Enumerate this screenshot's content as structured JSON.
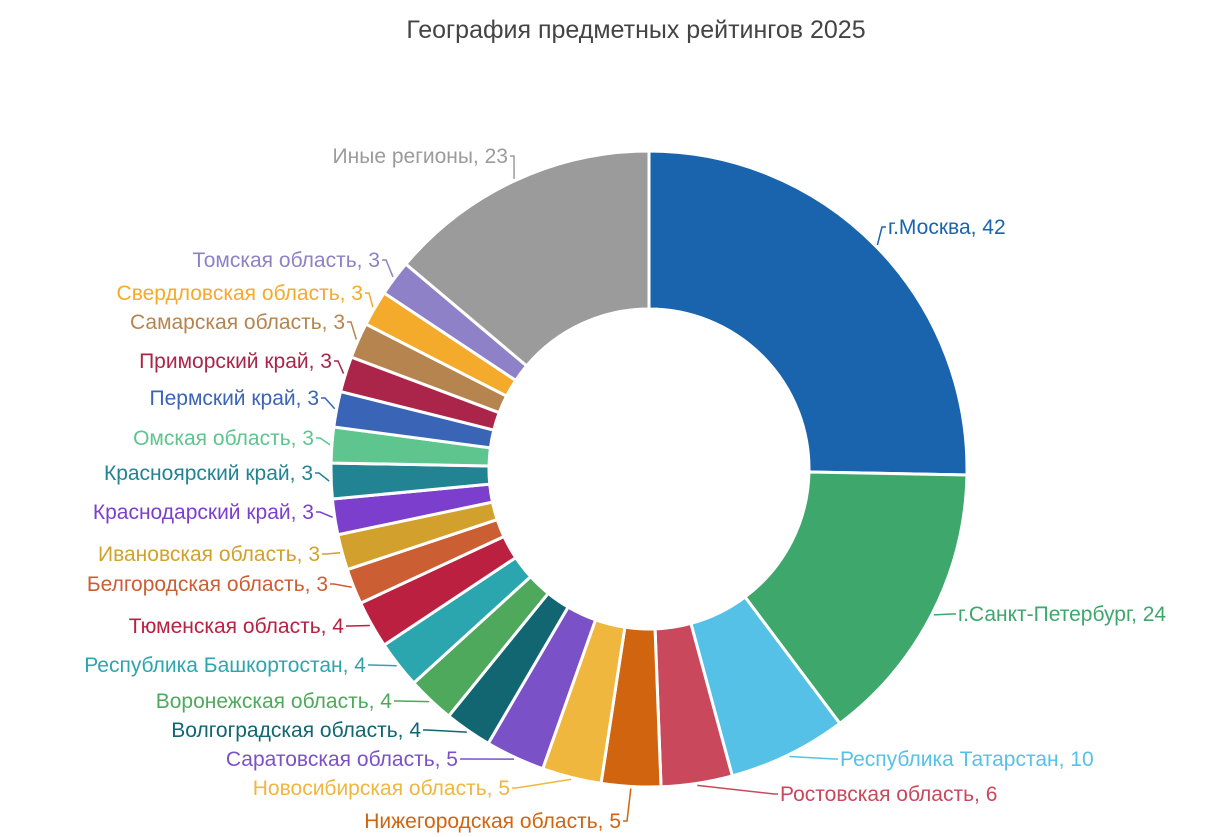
{
  "chart_data": {
    "type": "pie",
    "donut": true,
    "title": "География предметных рейтингов 2025",
    "slices": [
      {
        "label": "г.Москва, 42",
        "value": 42,
        "color": "#1a64ad"
      },
      {
        "label": "г.Санкт-Петербург, 24",
        "value": 24,
        "color": "#3ea76b"
      },
      {
        "label": "Республика Татарстан, 10",
        "value": 10,
        "color": "#56c1e6"
      },
      {
        "label": "Ростовская область, 6",
        "value": 6,
        "color": "#c9485b"
      },
      {
        "label": "Нижегородская область, 5",
        "value": 5,
        "color": "#d1640f"
      },
      {
        "label": "Новосибирская область, 5",
        "value": 5,
        "color": "#efb73e"
      },
      {
        "label": "Саратовская область, 5",
        "value": 5,
        "color": "#7b51c7"
      },
      {
        "label": "Волгоградская область, 4",
        "value": 4,
        "color": "#116671"
      },
      {
        "label": "Воронежская область, 4",
        "value": 4,
        "color": "#4fa95c"
      },
      {
        "label": "Республика Башкортостан, 4",
        "value": 4,
        "color": "#2ca6ae"
      },
      {
        "label": "Тюменская область, 4",
        "value": 4,
        "color": "#bb2040"
      },
      {
        "label": "Белгородская область, 3",
        "value": 3,
        "color": "#cc5e33"
      },
      {
        "label": "Ивановская область, 3",
        "value": 3,
        "color": "#d2a12d"
      },
      {
        "label": "Краснодарский край, 3",
        "value": 3,
        "color": "#7c3fcd"
      },
      {
        "label": "Красноярский край, 3",
        "value": 3,
        "color": "#228393"
      },
      {
        "label": "Омская область, 3",
        "value": 3,
        "color": "#5dc58d"
      },
      {
        "label": "Пермский край, 3",
        "value": 3,
        "color": "#3a64b6"
      },
      {
        "label": "Приморский край, 3",
        "value": 3,
        "color": "#ab2449"
      },
      {
        "label": "Самарская область, 3",
        "value": 3,
        "color": "#b6844f"
      },
      {
        "label": "Свердловская область, 3",
        "value": 3,
        "color": "#f4aa2a"
      },
      {
        "label": "Томская область, 3",
        "value": 3,
        "color": "#8e81c7"
      },
      {
        "label": "Иные регионы, 23",
        "value": 23,
        "color": "#9b9b9b"
      }
    ]
  }
}
